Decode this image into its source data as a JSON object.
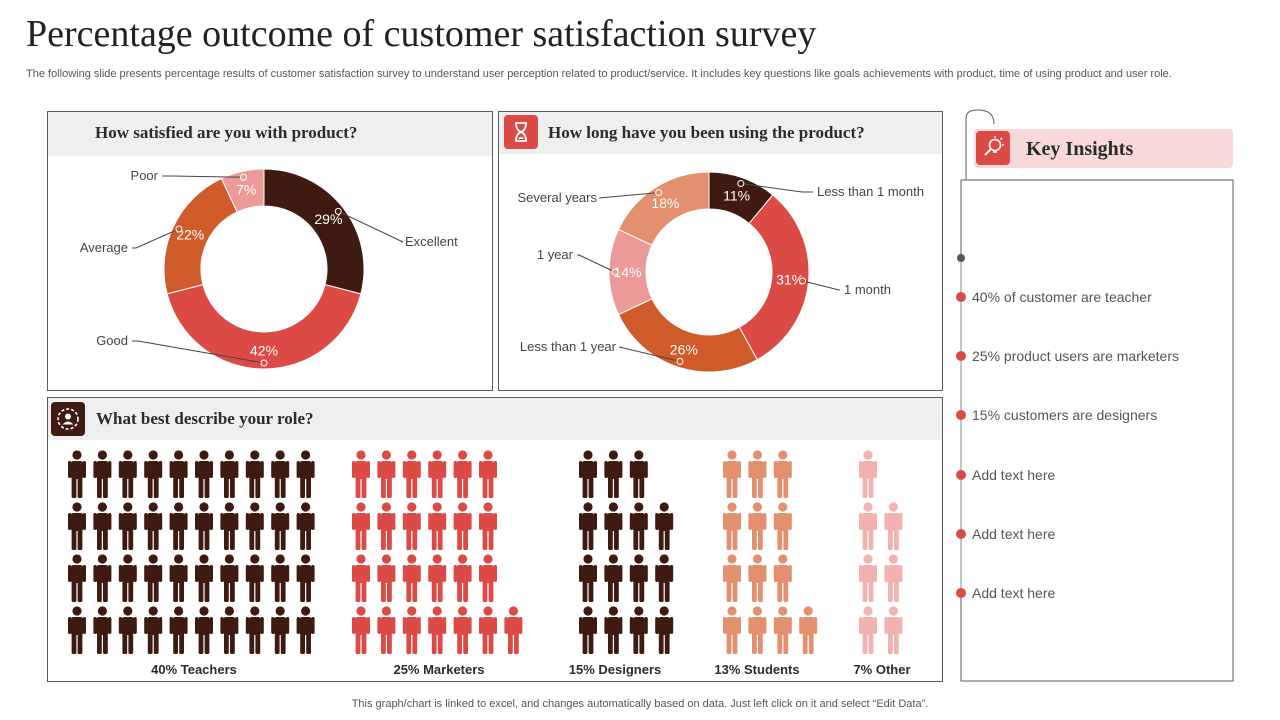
{
  "page": {
    "title": "Percentage outcome of customer satisfaction survey",
    "subtitle": "The following slide presents percentage results of customer satisfaction survey to understand user perception related to product/service. It includes key questions like goals achievements with product, time of using product and user role.",
    "footer": "This graph/chart is linked to excel, and changes automatically based on data. Just left click on it and select “Edit Data”."
  },
  "panels": {
    "satisfaction_heading": "How satisfied are you with product?",
    "usage_heading": "How long have you been using the product?",
    "role_heading": "What best describe your role?"
  },
  "insights": {
    "title": "Key Insights",
    "items": [
      "40% of customer are teacher",
      "25% product users are marketers",
      "15% customers are designers",
      "Add text here",
      "Add text here",
      "Add text here"
    ]
  },
  "chart_data": [
    {
      "type": "pie",
      "title": "How satisfied are you with product?",
      "start_angle_deg": 0,
      "categories": [
        "Excellent",
        "Good",
        "Average",
        "Poor"
      ],
      "values": [
        29,
        42,
        22,
        7
      ],
      "labels": [
        "29%",
        "42%",
        "22%",
        "7%"
      ],
      "colors": [
        "#3f1a10",
        "#db4a45",
        "#cf5a2a",
        "#ec9a97"
      ]
    },
    {
      "type": "pie",
      "title": "How long have you been using the product?",
      "start_angle_deg": 0,
      "categories": [
        "Less than 1 month",
        "1 month",
        "Less than 1 year",
        "1 year",
        "Several  years"
      ],
      "values": [
        11,
        31,
        26,
        14,
        18
      ],
      "labels": [
        "11%",
        "31%",
        "26%",
        "14%",
        "18%"
      ],
      "colors": [
        "#3f1a10",
        "#db4a45",
        "#cf5a2a",
        "#ec9a97",
        "#e3906f"
      ]
    },
    {
      "type": "bar",
      "title": "What best describe your role?",
      "categories": [
        "Teachers",
        "Marketers",
        "Designers",
        "Students",
        "Other"
      ],
      "values": [
        40,
        25,
        15,
        13,
        7
      ],
      "labels": [
        "40%  Teachers",
        "25%  Marketers",
        "15%  Designers",
        "13%  Students",
        "7%  Other"
      ],
      "colors": [
        "#3f1a10",
        "#db4a45",
        "#3f1a10",
        "#e3906f",
        "#f1b2b0"
      ]
    }
  ]
}
